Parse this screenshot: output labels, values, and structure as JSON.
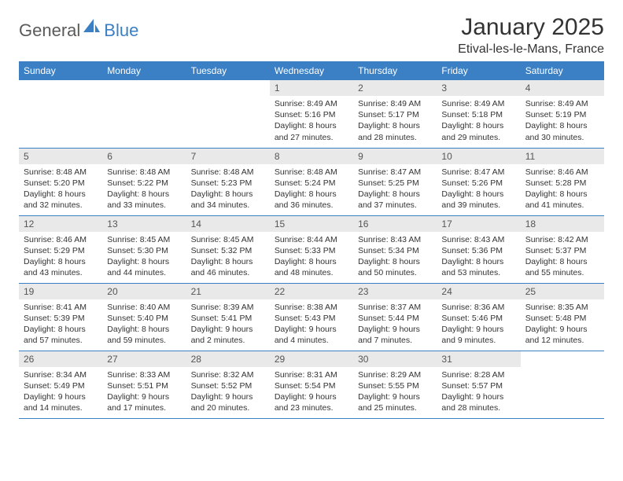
{
  "brand": {
    "text_general": "General",
    "text_blue": "Blue",
    "icon_color": "#3b7fc4"
  },
  "title": "January 2025",
  "location": "Etival-les-le-Mans, France",
  "colors": {
    "header_bg": "#3b7fc4",
    "header_text": "#ffffff",
    "daynum_bg": "#e9e9e9",
    "border": "#3b7fc4",
    "body_text": "#333333"
  },
  "weekdays": [
    "Sunday",
    "Monday",
    "Tuesday",
    "Wednesday",
    "Thursday",
    "Friday",
    "Saturday"
  ],
  "weeks": [
    [
      {
        "day": "",
        "lines": [
          "",
          "",
          "",
          ""
        ]
      },
      {
        "day": "",
        "lines": [
          "",
          "",
          "",
          ""
        ]
      },
      {
        "day": "",
        "lines": [
          "",
          "",
          "",
          ""
        ]
      },
      {
        "day": "1",
        "lines": [
          "Sunrise: 8:49 AM",
          "Sunset: 5:16 PM",
          "Daylight: 8 hours",
          "and 27 minutes."
        ]
      },
      {
        "day": "2",
        "lines": [
          "Sunrise: 8:49 AM",
          "Sunset: 5:17 PM",
          "Daylight: 8 hours",
          "and 28 minutes."
        ]
      },
      {
        "day": "3",
        "lines": [
          "Sunrise: 8:49 AM",
          "Sunset: 5:18 PM",
          "Daylight: 8 hours",
          "and 29 minutes."
        ]
      },
      {
        "day": "4",
        "lines": [
          "Sunrise: 8:49 AM",
          "Sunset: 5:19 PM",
          "Daylight: 8 hours",
          "and 30 minutes."
        ]
      }
    ],
    [
      {
        "day": "5",
        "lines": [
          "Sunrise: 8:48 AM",
          "Sunset: 5:20 PM",
          "Daylight: 8 hours",
          "and 32 minutes."
        ]
      },
      {
        "day": "6",
        "lines": [
          "Sunrise: 8:48 AM",
          "Sunset: 5:22 PM",
          "Daylight: 8 hours",
          "and 33 minutes."
        ]
      },
      {
        "day": "7",
        "lines": [
          "Sunrise: 8:48 AM",
          "Sunset: 5:23 PM",
          "Daylight: 8 hours",
          "and 34 minutes."
        ]
      },
      {
        "day": "8",
        "lines": [
          "Sunrise: 8:48 AM",
          "Sunset: 5:24 PM",
          "Daylight: 8 hours",
          "and 36 minutes."
        ]
      },
      {
        "day": "9",
        "lines": [
          "Sunrise: 8:47 AM",
          "Sunset: 5:25 PM",
          "Daylight: 8 hours",
          "and 37 minutes."
        ]
      },
      {
        "day": "10",
        "lines": [
          "Sunrise: 8:47 AM",
          "Sunset: 5:26 PM",
          "Daylight: 8 hours",
          "and 39 minutes."
        ]
      },
      {
        "day": "11",
        "lines": [
          "Sunrise: 8:46 AM",
          "Sunset: 5:28 PM",
          "Daylight: 8 hours",
          "and 41 minutes."
        ]
      }
    ],
    [
      {
        "day": "12",
        "lines": [
          "Sunrise: 8:46 AM",
          "Sunset: 5:29 PM",
          "Daylight: 8 hours",
          "and 43 minutes."
        ]
      },
      {
        "day": "13",
        "lines": [
          "Sunrise: 8:45 AM",
          "Sunset: 5:30 PM",
          "Daylight: 8 hours",
          "and 44 minutes."
        ]
      },
      {
        "day": "14",
        "lines": [
          "Sunrise: 8:45 AM",
          "Sunset: 5:32 PM",
          "Daylight: 8 hours",
          "and 46 minutes."
        ]
      },
      {
        "day": "15",
        "lines": [
          "Sunrise: 8:44 AM",
          "Sunset: 5:33 PM",
          "Daylight: 8 hours",
          "and 48 minutes."
        ]
      },
      {
        "day": "16",
        "lines": [
          "Sunrise: 8:43 AM",
          "Sunset: 5:34 PM",
          "Daylight: 8 hours",
          "and 50 minutes."
        ]
      },
      {
        "day": "17",
        "lines": [
          "Sunrise: 8:43 AM",
          "Sunset: 5:36 PM",
          "Daylight: 8 hours",
          "and 53 minutes."
        ]
      },
      {
        "day": "18",
        "lines": [
          "Sunrise: 8:42 AM",
          "Sunset: 5:37 PM",
          "Daylight: 8 hours",
          "and 55 minutes."
        ]
      }
    ],
    [
      {
        "day": "19",
        "lines": [
          "Sunrise: 8:41 AM",
          "Sunset: 5:39 PM",
          "Daylight: 8 hours",
          "and 57 minutes."
        ]
      },
      {
        "day": "20",
        "lines": [
          "Sunrise: 8:40 AM",
          "Sunset: 5:40 PM",
          "Daylight: 8 hours",
          "and 59 minutes."
        ]
      },
      {
        "day": "21",
        "lines": [
          "Sunrise: 8:39 AM",
          "Sunset: 5:41 PM",
          "Daylight: 9 hours",
          "and 2 minutes."
        ]
      },
      {
        "day": "22",
        "lines": [
          "Sunrise: 8:38 AM",
          "Sunset: 5:43 PM",
          "Daylight: 9 hours",
          "and 4 minutes."
        ]
      },
      {
        "day": "23",
        "lines": [
          "Sunrise: 8:37 AM",
          "Sunset: 5:44 PM",
          "Daylight: 9 hours",
          "and 7 minutes."
        ]
      },
      {
        "day": "24",
        "lines": [
          "Sunrise: 8:36 AM",
          "Sunset: 5:46 PM",
          "Daylight: 9 hours",
          "and 9 minutes."
        ]
      },
      {
        "day": "25",
        "lines": [
          "Sunrise: 8:35 AM",
          "Sunset: 5:48 PM",
          "Daylight: 9 hours",
          "and 12 minutes."
        ]
      }
    ],
    [
      {
        "day": "26",
        "lines": [
          "Sunrise: 8:34 AM",
          "Sunset: 5:49 PM",
          "Daylight: 9 hours",
          "and 14 minutes."
        ]
      },
      {
        "day": "27",
        "lines": [
          "Sunrise: 8:33 AM",
          "Sunset: 5:51 PM",
          "Daylight: 9 hours",
          "and 17 minutes."
        ]
      },
      {
        "day": "28",
        "lines": [
          "Sunrise: 8:32 AM",
          "Sunset: 5:52 PM",
          "Daylight: 9 hours",
          "and 20 minutes."
        ]
      },
      {
        "day": "29",
        "lines": [
          "Sunrise: 8:31 AM",
          "Sunset: 5:54 PM",
          "Daylight: 9 hours",
          "and 23 minutes."
        ]
      },
      {
        "day": "30",
        "lines": [
          "Sunrise: 8:29 AM",
          "Sunset: 5:55 PM",
          "Daylight: 9 hours",
          "and 25 minutes."
        ]
      },
      {
        "day": "31",
        "lines": [
          "Sunrise: 8:28 AM",
          "Sunset: 5:57 PM",
          "Daylight: 9 hours",
          "and 28 minutes."
        ]
      },
      {
        "day": "",
        "lines": [
          "",
          "",
          "",
          ""
        ]
      }
    ]
  ]
}
